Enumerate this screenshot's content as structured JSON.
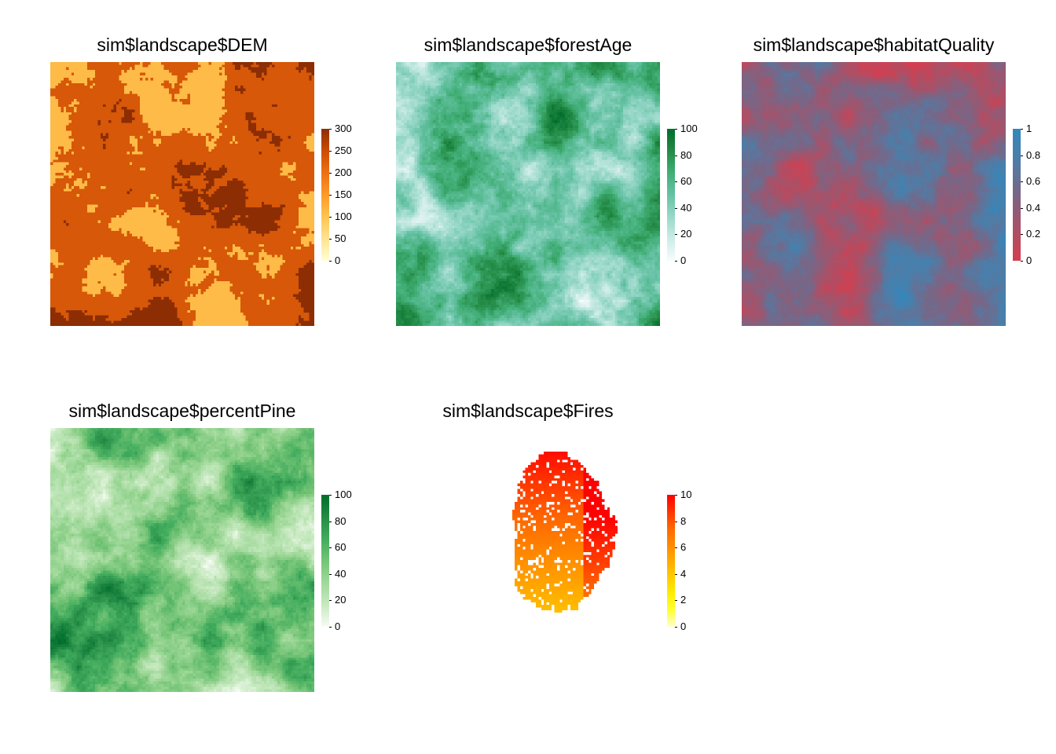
{
  "chart_data": [
    {
      "type": "heatmap",
      "title": "sim$landscape$DEM",
      "grid_cells": 100,
      "legend_ticks": [
        "0",
        "50",
        "100",
        "150",
        "200",
        "250",
        "300"
      ],
      "value_range": [
        0,
        300
      ],
      "colors": [
        "#FFFFD4",
        "#FEE391",
        "#FEC44F",
        "#FE9929",
        "#EC7014",
        "#CC4C02",
        "#8C2D04"
      ],
      "pattern": "discrete",
      "seed": 11
    },
    {
      "type": "heatmap",
      "title": "sim$landscape$forestAge",
      "grid_cells": 100,
      "legend_ticks": [
        "0",
        "20",
        "40",
        "60",
        "80",
        "100"
      ],
      "value_range": [
        0,
        100
      ],
      "colors": [
        "#F7FCFD",
        "#CCECE6",
        "#99D8C9",
        "#66C2A4",
        "#41AE76",
        "#238B45",
        "#006D2C"
      ],
      "pattern": "smooth",
      "seed": 23
    },
    {
      "type": "heatmap",
      "title": "sim$landscape$habitatQuality",
      "grid_cells": 100,
      "legend_ticks": [
        "0",
        "0.2",
        "0.4",
        "0.6",
        "0.8",
        "1"
      ],
      "value_range": [
        0,
        1
      ],
      "colors": [
        "#D53E4F",
        "#A85168",
        "#7A6585",
        "#4F7CA6",
        "#3288BD"
      ],
      "pattern": "smooth",
      "seed": 37
    },
    {
      "type": "heatmap",
      "title": "sim$landscape$percentPine",
      "grid_cells": 100,
      "legend_ticks": [
        "0",
        "20",
        "40",
        "60",
        "80",
        "100"
      ],
      "value_range": [
        0,
        100
      ],
      "colors": [
        "#F7FCF5",
        "#C7E9C0",
        "#A1D99B",
        "#74C476",
        "#41AB5D",
        "#238B45",
        "#006D2C"
      ],
      "pattern": "smooth",
      "seed": 51
    },
    {
      "type": "heatmap",
      "title": "sim$landscape$Fires",
      "grid_cells": 100,
      "legend_ticks": [
        "0",
        "2",
        "4",
        "6",
        "8",
        "10"
      ],
      "value_range": [
        0,
        10
      ],
      "colors": [
        "#FFFFCC",
        "#FFFF33",
        "#FFEE00",
        "#FFCC00",
        "#FFAA00",
        "#FF8800",
        "#FF6600",
        "#FF3300",
        "#FF0000"
      ],
      "pattern": "fires",
      "seed": 67
    }
  ]
}
